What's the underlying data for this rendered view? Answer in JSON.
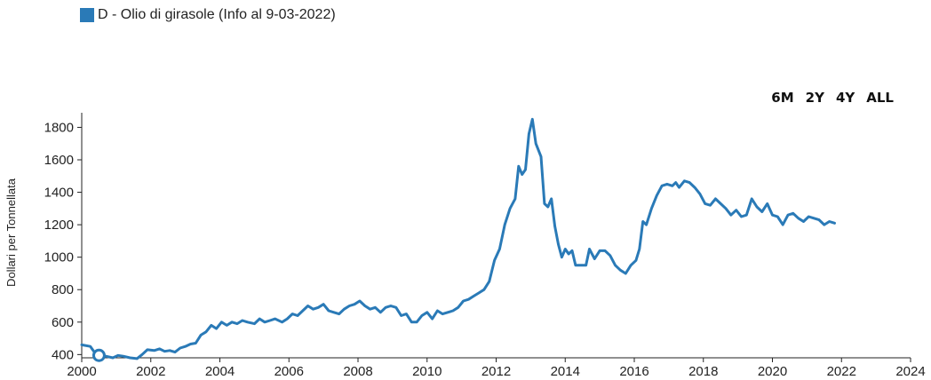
{
  "legend": {
    "label": "D - Olio di girasole (Info al 9-03-2022)",
    "color": "#2a7ab7"
  },
  "range_buttons": [
    "6M",
    "2Y",
    "4Y",
    "ALL"
  ],
  "chart_data": {
    "type": "line",
    "title": "",
    "xlabel": "",
    "ylabel": "Dollari per Tonnellata",
    "xlim": [
      2000,
      2024
    ],
    "ylim": [
      380,
      1890
    ],
    "x_ticks": [
      2000,
      2002,
      2004,
      2006,
      2008,
      2010,
      2012,
      2014,
      2016,
      2018,
      2020,
      2022,
      2024
    ],
    "y_ticks": [
      400,
      600,
      800,
      1000,
      1200,
      1400,
      1600,
      1800
    ],
    "grid": false,
    "legend_position": "top-left",
    "series": [
      {
        "name": "D - Olio di girasole (Info al 9-03-2022)",
        "color": "#2a7ab7",
        "points": [
          [
            2000.0,
            460
          ],
          [
            2000.25,
            450
          ],
          [
            2000.35,
            420
          ],
          [
            2000.5,
            395
          ],
          [
            2000.7,
            390
          ],
          [
            2000.9,
            380
          ],
          [
            2001.05,
            395
          ],
          [
            2001.2,
            390
          ],
          [
            2001.4,
            380
          ],
          [
            2001.6,
            375
          ],
          [
            2001.75,
            400
          ],
          [
            2001.9,
            430
          ],
          [
            2002.1,
            425
          ],
          [
            2002.25,
            435
          ],
          [
            2002.4,
            420
          ],
          [
            2002.55,
            425
          ],
          [
            2002.7,
            415
          ],
          [
            2002.85,
            440
          ],
          [
            2003.0,
            450
          ],
          [
            2003.15,
            465
          ],
          [
            2003.3,
            470
          ],
          [
            2003.45,
            520
          ],
          [
            2003.6,
            540
          ],
          [
            2003.75,
            580
          ],
          [
            2003.9,
            560
          ],
          [
            2004.05,
            600
          ],
          [
            2004.2,
            580
          ],
          [
            2004.35,
            600
          ],
          [
            2004.5,
            590
          ],
          [
            2004.65,
            610
          ],
          [
            2004.8,
            600
          ],
          [
            2005.0,
            590
          ],
          [
            2005.15,
            620
          ],
          [
            2005.3,
            600
          ],
          [
            2005.45,
            610
          ],
          [
            2005.6,
            620
          ],
          [
            2005.8,
            600
          ],
          [
            2005.95,
            620
          ],
          [
            2006.1,
            650
          ],
          [
            2006.25,
            640
          ],
          [
            2006.4,
            670
          ],
          [
            2006.55,
            700
          ],
          [
            2006.7,
            680
          ],
          [
            2006.85,
            690
          ],
          [
            2007.0,
            710
          ],
          [
            2007.15,
            670
          ],
          [
            2007.3,
            660
          ],
          [
            2007.45,
            650
          ],
          [
            2007.6,
            680
          ],
          [
            2007.75,
            700
          ],
          [
            2007.9,
            710
          ],
          [
            2008.05,
            730
          ],
          [
            2008.2,
            700
          ],
          [
            2008.35,
            680
          ],
          [
            2008.5,
            690
          ],
          [
            2008.65,
            660
          ],
          [
            2008.8,
            690
          ],
          [
            2008.95,
            700
          ],
          [
            2009.1,
            690
          ],
          [
            2009.25,
            640
          ],
          [
            2009.4,
            650
          ],
          [
            2009.55,
            600
          ],
          [
            2009.7,
            600
          ],
          [
            2009.85,
            640
          ],
          [
            2010.0,
            660
          ],
          [
            2010.15,
            620
          ],
          [
            2010.3,
            670
          ],
          [
            2010.45,
            650
          ],
          [
            2010.6,
            660
          ],
          [
            2010.75,
            670
          ],
          [
            2010.9,
            690
          ],
          [
            2011.05,
            730
          ],
          [
            2011.2,
            740
          ],
          [
            2011.35,
            760
          ],
          [
            2011.5,
            780
          ],
          [
            2011.65,
            800
          ],
          [
            2011.8,
            850
          ],
          [
            2011.95,
            980
          ],
          [
            2012.1,
            1050
          ],
          [
            2012.25,
            1200
          ],
          [
            2012.4,
            1300
          ],
          [
            2012.55,
            1360
          ],
          [
            2012.65,
            1560
          ],
          [
            2012.75,
            1510
          ],
          [
            2012.85,
            1540
          ],
          [
            2012.95,
            1760
          ],
          [
            2013.05,
            1850
          ],
          [
            2013.15,
            1700
          ],
          [
            2013.3,
            1620
          ],
          [
            2013.4,
            1330
          ],
          [
            2013.5,
            1310
          ],
          [
            2013.6,
            1360
          ],
          [
            2013.7,
            1190
          ],
          [
            2013.8,
            1080
          ],
          [
            2013.9,
            1000
          ],
          [
            2014.0,
            1050
          ],
          [
            2014.1,
            1020
          ],
          [
            2014.2,
            1040
          ],
          [
            2014.3,
            950
          ],
          [
            2014.45,
            950
          ],
          [
            2014.6,
            950
          ],
          [
            2014.7,
            1050
          ],
          [
            2014.85,
            990
          ],
          [
            2015.0,
            1040
          ],
          [
            2015.15,
            1040
          ],
          [
            2015.3,
            1010
          ],
          [
            2015.45,
            950
          ],
          [
            2015.6,
            920
          ],
          [
            2015.75,
            900
          ],
          [
            2015.9,
            950
          ],
          [
            2016.05,
            980
          ],
          [
            2016.15,
            1050
          ],
          [
            2016.25,
            1220
          ],
          [
            2016.35,
            1200
          ],
          [
            2016.5,
            1300
          ],
          [
            2016.65,
            1380
          ],
          [
            2016.8,
            1440
          ],
          [
            2016.95,
            1450
          ],
          [
            2017.1,
            1440
          ],
          [
            2017.2,
            1460
          ],
          [
            2017.3,
            1430
          ],
          [
            2017.45,
            1470
          ],
          [
            2017.6,
            1460
          ],
          [
            2017.75,
            1430
          ],
          [
            2017.9,
            1390
          ],
          [
            2018.05,
            1330
          ],
          [
            2018.2,
            1320
          ],
          [
            2018.35,
            1360
          ],
          [
            2018.5,
            1330
          ],
          [
            2018.65,
            1300
          ],
          [
            2018.8,
            1260
          ],
          [
            2018.95,
            1290
          ],
          [
            2019.1,
            1250
          ],
          [
            2019.25,
            1260
          ],
          [
            2019.4,
            1360
          ],
          [
            2019.55,
            1310
          ],
          [
            2019.7,
            1280
          ],
          [
            2019.85,
            1330
          ],
          [
            2020.0,
            1260
          ],
          [
            2020.15,
            1250
          ],
          [
            2020.3,
            1200
          ],
          [
            2020.45,
            1260
          ],
          [
            2020.6,
            1270
          ],
          [
            2020.75,
            1240
          ],
          [
            2020.9,
            1220
          ],
          [
            2021.05,
            1250
          ],
          [
            2021.2,
            1240
          ],
          [
            2021.35,
            1230
          ],
          [
            2021.5,
            1200
          ],
          [
            2021.65,
            1220
          ],
          [
            2021.8,
            1210
          ]
        ]
      }
    ]
  }
}
